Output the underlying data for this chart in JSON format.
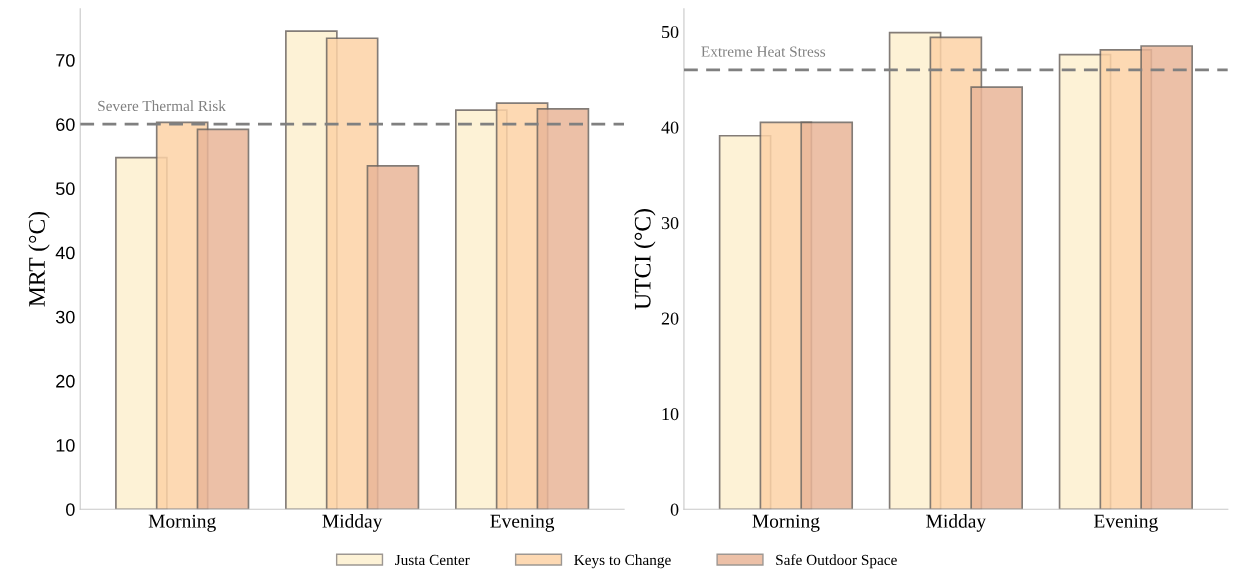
{
  "chart_data": [
    {
      "type": "bar",
      "ylabel": "MRT (°C)",
      "categories": [
        "Morning",
        "Midday",
        "Evening"
      ],
      "series": [
        {
          "name": "Justa Center",
          "color": "#fdf0cf",
          "values": [
            54.8,
            74.5,
            62.2
          ]
        },
        {
          "name": "Keys to Change",
          "color": "#fdd3a6",
          "values": [
            60.3,
            73.4,
            63.3
          ]
        },
        {
          "name": "Safe Outdoor Space",
          "color": "#e9b698",
          "values": [
            59.2,
            53.5,
            62.4
          ]
        }
      ],
      "ylim": [
        0,
        78
      ],
      "yticks": [
        0,
        10,
        20,
        30,
        40,
        50,
        60,
        70
      ],
      "grid": false,
      "ref_lines": [
        {
          "axis": "y",
          "value": 60,
          "label": "Severe Thermal Risk",
          "color": "#808080",
          "line_style": "dashed"
        }
      ],
      "legend": "bottom"
    },
    {
      "type": "bar",
      "ylabel": "UTCI (°C)",
      "categories": [
        "Morning",
        "Midday",
        "Evening"
      ],
      "series": [
        {
          "color": "#fdf0cf",
          "values": [
            39.1,
            49.9,
            47.6
          ]
        },
        {
          "color": "#fdd3a6",
          "values": [
            40.5,
            49.4,
            48.1
          ]
        },
        {
          "color": "#e9b698",
          "values": [
            40.5,
            44.2,
            48.5
          ]
        }
      ],
      "ylim": [
        0,
        52.4
      ],
      "yticks": [
        0,
        10,
        20,
        30,
        40,
        50
      ],
      "grid": false,
      "ref_lines": [
        {
          "axis": "y",
          "value": 46,
          "label": "Extreme Heat Stress",
          "color": "#808080",
          "line_style": "dashed"
        }
      ]
    }
  ]
}
